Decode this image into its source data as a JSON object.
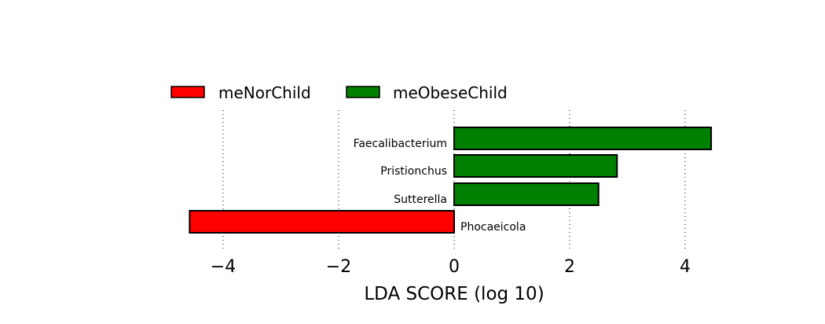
{
  "chart_data": {
    "type": "bar",
    "orientation": "horizontal",
    "categories": [
      "Faecalibacterium",
      "Pristionchus",
      "Sutterella",
      "Phocaeicola"
    ],
    "values": [
      4.45,
      2.82,
      2.5,
      -4.58
    ],
    "groups": [
      "meObeseChild",
      "meObeseChild",
      "meObeseChild",
      "meNorChild"
    ],
    "legend": [
      {
        "name": "meNorChild",
        "color": "#ff0000"
      },
      {
        "name": "meObeseChild",
        "color": "#008000"
      }
    ],
    "legend_position": "top-left",
    "xlabel": "LDA SCORE (log 10)",
    "ylabel": "",
    "title": "",
    "xticks": [
      -4,
      -2,
      0,
      2,
      4
    ],
    "tick_labels": [
      "−4",
      "−2",
      "0",
      "2",
      "4"
    ],
    "xlim": [
      -4.6,
      4.6
    ],
    "grid": "vertical dotted"
  }
}
